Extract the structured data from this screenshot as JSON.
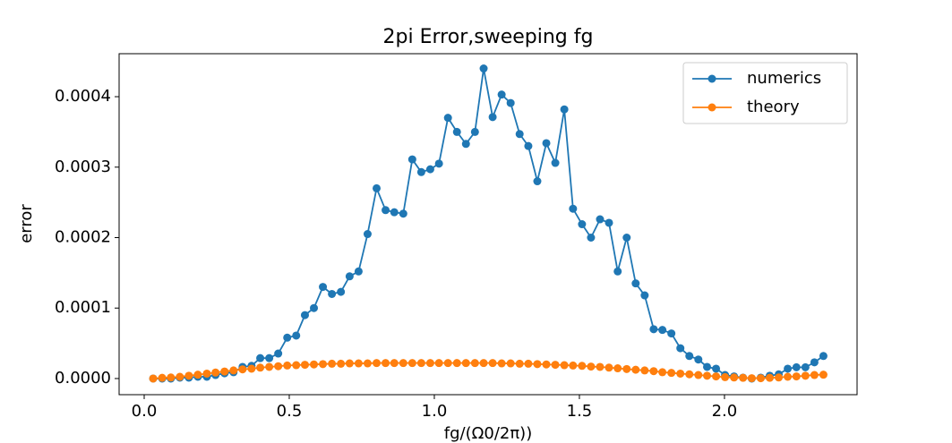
{
  "chart_data": {
    "type": "line",
    "title": "2pi Error,sweeping fg",
    "xlabel": "fg/(Ω0/2π))",
    "ylabel": "error",
    "x": [
      0.031,
      0.062,
      0.092,
      0.123,
      0.154,
      0.185,
      0.216,
      0.246,
      0.277,
      0.308,
      0.339,
      0.37,
      0.4,
      0.431,
      0.462,
      0.493,
      0.524,
      0.554,
      0.585,
      0.616,
      0.647,
      0.678,
      0.708,
      0.739,
      0.77,
      0.801,
      0.832,
      0.862,
      0.893,
      0.924,
      0.955,
      0.986,
      1.016,
      1.047,
      1.078,
      1.109,
      1.14,
      1.17,
      1.201,
      1.232,
      1.263,
      1.294,
      1.324,
      1.355,
      1.386,
      1.417,
      1.448,
      1.478,
      1.509,
      1.54,
      1.571,
      1.602,
      1.632,
      1.663,
      1.694,
      1.725,
      1.756,
      1.786,
      1.817,
      1.848,
      1.879,
      1.91,
      1.94,
      1.971,
      2.002,
      2.033,
      2.064,
      2.094,
      2.125,
      2.156,
      2.187,
      2.218,
      2.248,
      2.279,
      2.31,
      2.341
    ],
    "series": [
      {
        "name": "numerics",
        "color": "#1f77b4",
        "values": [
          0,
          0,
          0,
          1.3e-06,
          1.3e-06,
          2.5e-06,
          2.5e-06,
          5e-06,
          7.5e-06,
          9e-06,
          1.65e-05,
          1.8e-05,
          2.9e-05,
          2.9e-05,
          3.55e-05,
          5.8e-05,
          6.1e-05,
          9e-05,
          0.0001,
          0.00013,
          0.00012,
          0.000123,
          0.000145,
          0.000152,
          0.000205,
          0.00027,
          0.000239,
          0.000236,
          0.000234,
          0.000311,
          0.000293,
          0.000297,
          0.000305,
          0.00037,
          0.00035,
          0.000333,
          0.00035,
          0.00044,
          0.000371,
          0.000403,
          0.000391,
          0.000347,
          0.00033,
          0.00028,
          0.000334,
          0.000306,
          0.000382,
          0.000241,
          0.000219,
          0.0002,
          0.000226,
          0.000221,
          0.000152,
          0.0002,
          0.000135,
          0.000118,
          7e-05,
          6.9e-05,
          6.4e-05,
          4.3e-05,
          3.2e-05,
          2.7e-05,
          1.65e-05,
          1.4e-05,
          5e-06,
          3e-06,
          1.3e-06,
          0,
          1.3e-06,
          4e-06,
          6e-06,
          1.4e-05,
          1.6e-05,
          1.6e-05,
          2.3e-05,
          3.2e-05
        ]
      },
      {
        "name": "theory",
        "color": "#ff7f0e",
        "values": [
          0,
          1e-06,
          1.5e-06,
          2.5e-06,
          4e-06,
          5.5e-06,
          7e-06,
          8.5e-06,
          1e-05,
          1.15e-05,
          1.3e-05,
          1.4e-05,
          1.55e-05,
          1.65e-05,
          1.75e-05,
          1.85e-05,
          1.9e-05,
          1.95e-05,
          2e-05,
          2.05e-05,
          2.1e-05,
          2.1e-05,
          2.15e-05,
          2.15e-05,
          2.15e-05,
          2.2e-05,
          2.2e-05,
          2.2e-05,
          2.2e-05,
          2.2e-05,
          2.2e-05,
          2.2e-05,
          2.2e-05,
          2.2e-05,
          2.2e-05,
          2.2e-05,
          2.2e-05,
          2.2e-05,
          2.2e-05,
          2.15e-05,
          2.15e-05,
          2.1e-05,
          2.1e-05,
          2.05e-05,
          2e-05,
          1.95e-05,
          1.9e-05,
          1.85e-05,
          1.8e-05,
          1.7e-05,
          1.65e-05,
          1.55e-05,
          1.45e-05,
          1.35e-05,
          1.25e-05,
          1.15e-05,
          1.05e-05,
          9e-06,
          8e-06,
          7e-06,
          6e-06,
          5e-06,
          4e-06,
          3e-06,
          2e-06,
          1.5e-06,
          1e-06,
          5e-07,
          5e-07,
          1e-06,
          1.5e-06,
          2.5e-06,
          3e-06,
          4e-06,
          5e-06,
          5.5e-06
        ]
      }
    ],
    "xlim": [
      -0.0864,
      2.457
    ],
    "ylim": [
      -2.29e-05,
      0.000461
    ],
    "xticks": [
      {
        "value": 0,
        "label": "0.0"
      },
      {
        "value": 0.5,
        "label": "0.5"
      },
      {
        "value": 1,
        "label": "1.0"
      },
      {
        "value": 1.5,
        "label": "1.5"
      },
      {
        "value": 2,
        "label": "2.0"
      }
    ],
    "yticks": [
      {
        "value": 0,
        "label": "0.0000"
      },
      {
        "value": 0.0001,
        "label": "0.0001"
      },
      {
        "value": 0.0002,
        "label": "0.0002"
      },
      {
        "value": 0.0003,
        "label": "0.0003"
      },
      {
        "value": 0.0004,
        "label": "0.0004"
      }
    ],
    "legend": "upper right"
  }
}
